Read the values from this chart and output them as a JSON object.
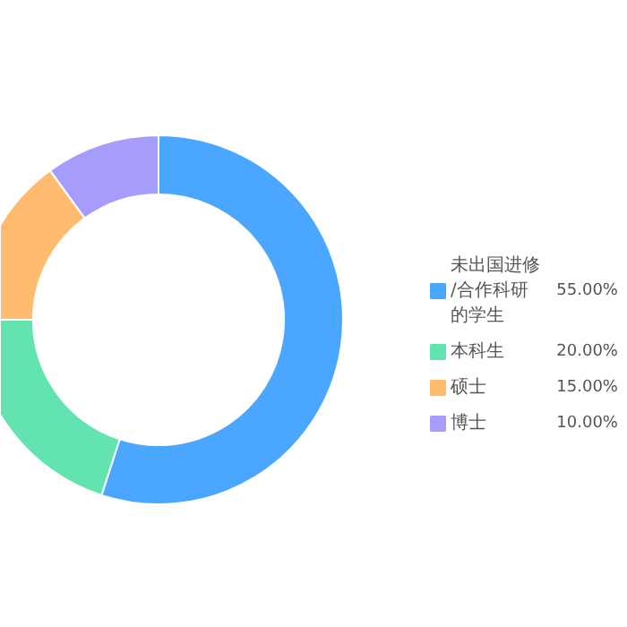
{
  "chart_data": {
    "type": "donut",
    "categories": [
      "未出国进修/合作科研的学生",
      "本科生",
      "硕士",
      "博士"
    ],
    "values": [
      55,
      20,
      15,
      10
    ],
    "colors": [
      "#4aa6ff",
      "#62e3b0",
      "#ffbb6e",
      "#a59cfb"
    ],
    "value_labels": [
      "55.00%",
      "20.00%",
      "15.00%",
      "10.00%"
    ],
    "legend": "right"
  }
}
